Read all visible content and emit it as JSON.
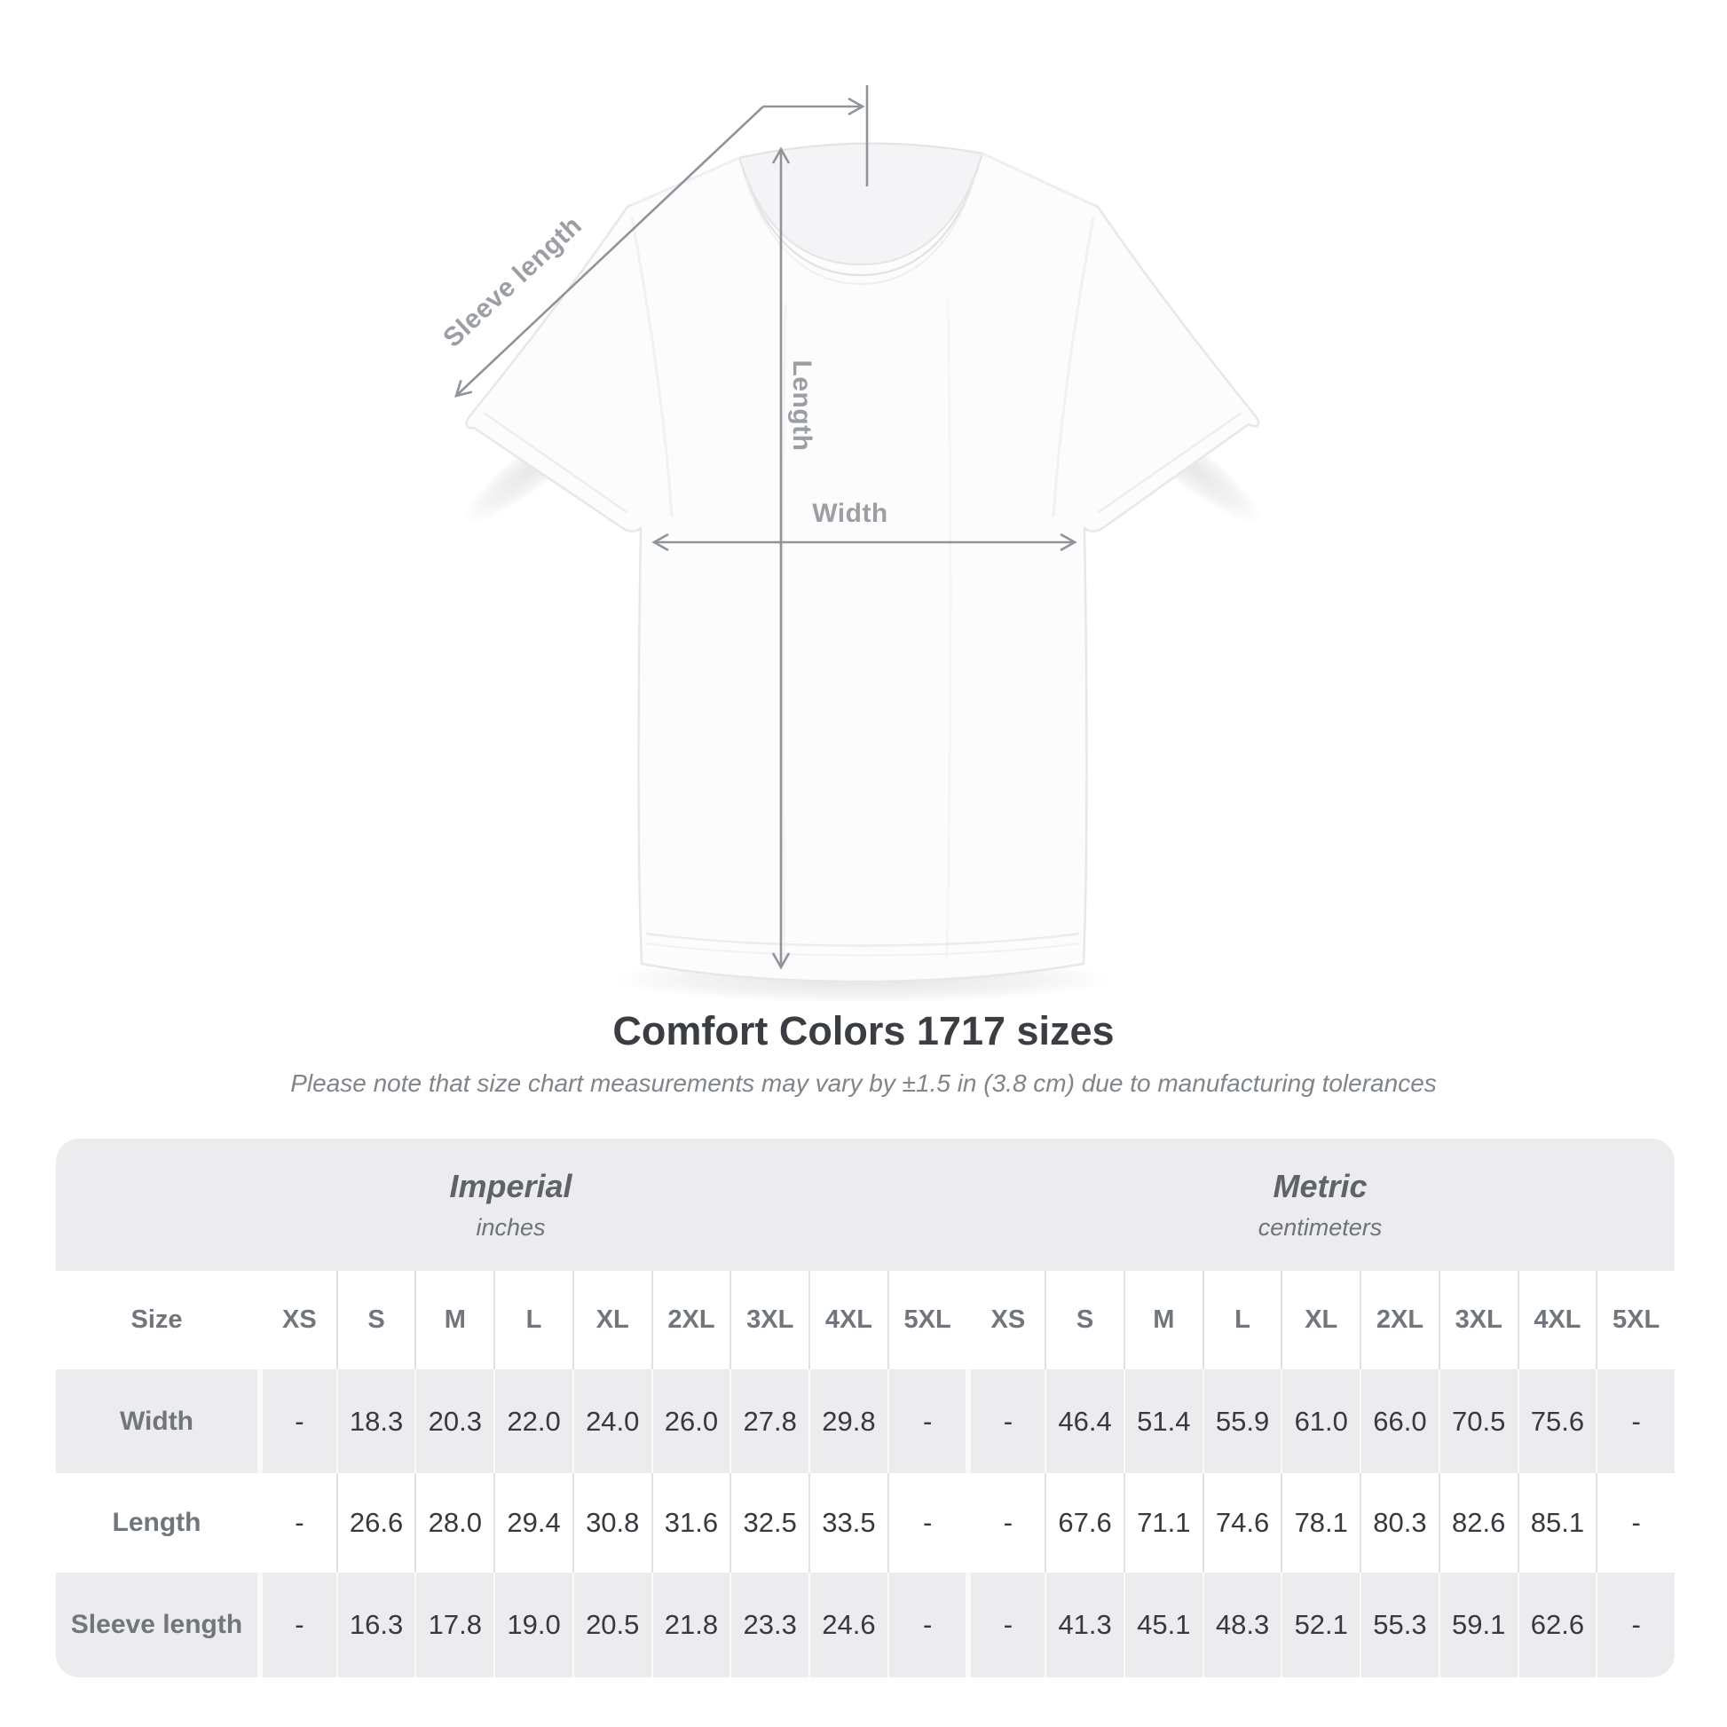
{
  "diagram": {
    "sleeve_label": "Sleeve length",
    "length_label": "Length",
    "width_label": "Width"
  },
  "chart_data": {
    "type": "table",
    "title": "Comfort Colors 1717 sizes",
    "subtitle": "Please note that size chart measurements may vary by ±1.5 in (3.8 cm) due to manufacturing tolerances",
    "row_header": "Size",
    "column_groups": [
      {
        "name": "Imperial",
        "unit": "inches",
        "sizes": [
          "XS",
          "S",
          "M",
          "L",
          "XL",
          "2XL",
          "3XL",
          "4XL",
          "5XL"
        ]
      },
      {
        "name": "Metric",
        "unit": "centimeters",
        "sizes": [
          "XS",
          "S",
          "M",
          "L",
          "XL",
          "2XL",
          "3XL",
          "4XL",
          "5XL"
        ]
      }
    ],
    "rows": [
      {
        "label": "Width",
        "imperial": [
          "-",
          "18.3",
          "20.3",
          "22.0",
          "24.0",
          "26.0",
          "27.8",
          "29.8",
          "-"
        ],
        "metric": [
          "-",
          "46.4",
          "51.4",
          "55.9",
          "61.0",
          "66.0",
          "70.5",
          "75.6",
          "-"
        ]
      },
      {
        "label": "Length",
        "imperial": [
          "-",
          "26.6",
          "28.0",
          "29.4",
          "30.8",
          "31.6",
          "32.5",
          "33.5",
          "-"
        ],
        "metric": [
          "-",
          "67.6",
          "71.1",
          "74.6",
          "78.1",
          "80.3",
          "82.6",
          "85.1",
          "-"
        ]
      },
      {
        "label": "Sleeve length",
        "imperial": [
          "-",
          "16.3",
          "17.8",
          "19.0",
          "20.5",
          "21.8",
          "23.3",
          "24.6",
          "-"
        ],
        "metric": [
          "-",
          "41.3",
          "45.1",
          "48.3",
          "52.1",
          "55.3",
          "59.1",
          "62.6",
          "-"
        ]
      }
    ]
  },
  "colors": {
    "arrow_gray": "#8f949a",
    "label_gray": "#9b9fa3",
    "table_stripe": "#ececee",
    "value_text": "#36393d",
    "header_text": "#70767c"
  }
}
